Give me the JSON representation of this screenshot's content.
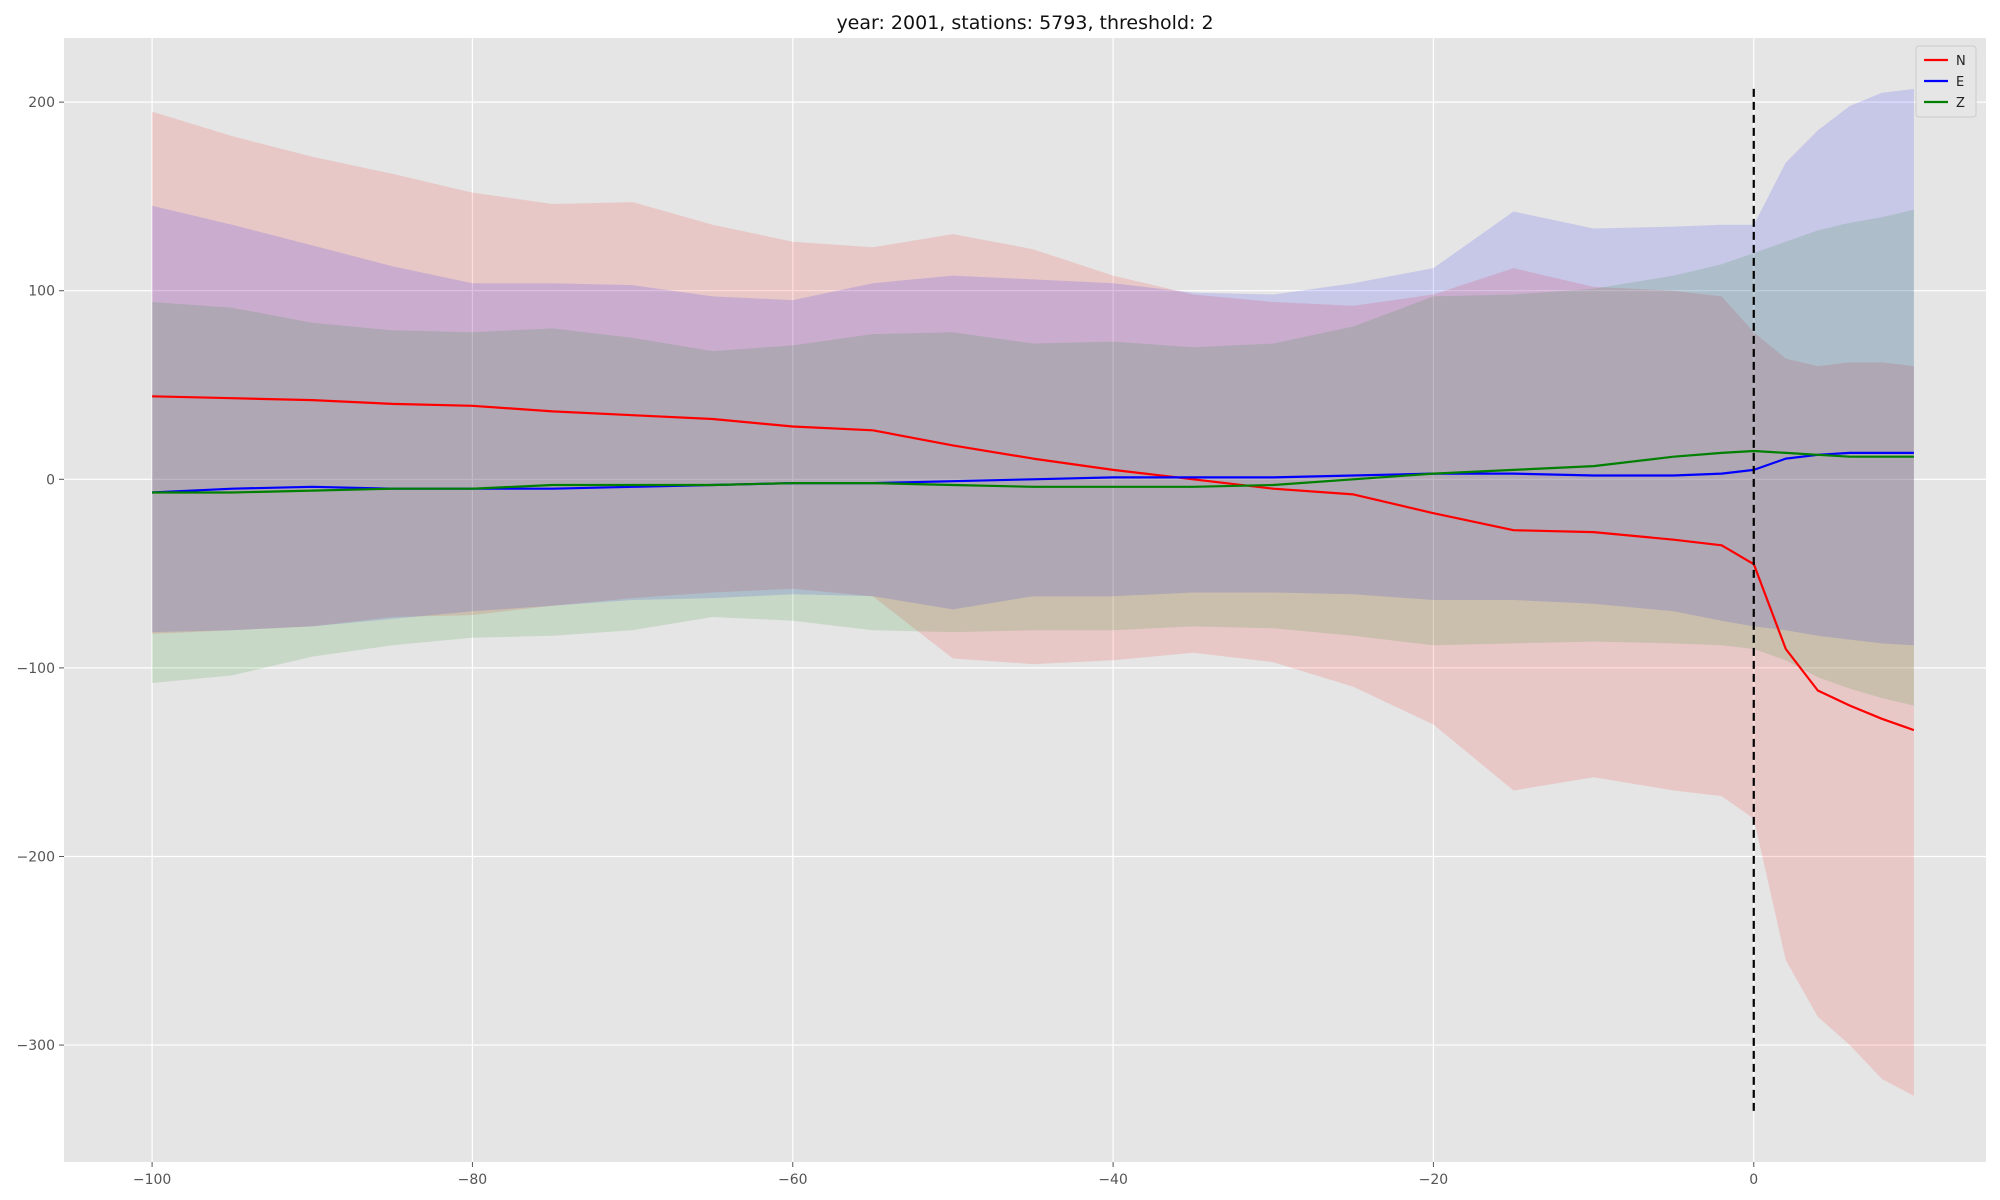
{
  "chart_data": {
    "type": "line",
    "title": "year: 2001, stations: 5793, threshold: 2",
    "xlabel": "",
    "ylabel": "",
    "xlim": [
      -105.5,
      14.5
    ],
    "ylim": [
      -362,
      234
    ],
    "xticks": [
      -100,
      -80,
      -60,
      -40,
      -20,
      0
    ],
    "yticks": [
      -300,
      -200,
      -100,
      0,
      100,
      200
    ],
    "xtick_labels": [
      "−100",
      "−80",
      "−60",
      "−40",
      "−20",
      "0"
    ],
    "ytick_labels": [
      "−300",
      "−200",
      "−100",
      "0",
      "100",
      "200"
    ],
    "grid": true,
    "background": "#e5e5e5",
    "legend": {
      "placement": "top-right"
    },
    "vline": {
      "x": 0,
      "ymin": -335,
      "ymax": 207,
      "style": "dashed",
      "color": "#000000"
    },
    "series": [
      {
        "name": "N",
        "color": "#ff0000",
        "band_color": "#ff0000",
        "x": [
          -100,
          -95,
          -90,
          -85,
          -80,
          -75,
          -70,
          -65,
          -60,
          -55,
          -50,
          -45,
          -40,
          -35,
          -30,
          -25,
          -20,
          -15,
          -10,
          -5,
          -2,
          0,
          2,
          4,
          6,
          8,
          10
        ],
        "mean": [
          44,
          43,
          42,
          40,
          39,
          36,
          34,
          32,
          28,
          26,
          18,
          11,
          5,
          0,
          -5,
          -8,
          -18,
          -27,
          -28,
          -32,
          -35,
          -45,
          -90,
          -112,
          -120,
          -127,
          -133
        ],
        "upper": [
          195,
          182,
          171,
          162,
          152,
          146,
          147,
          135,
          126,
          123,
          130,
          122,
          108,
          98,
          94,
          92,
          98,
          112,
          102,
          100,
          97,
          78,
          64,
          60,
          62,
          62,
          60
        ],
        "lower": [
          -82,
          -80,
          -78,
          -73,
          -72,
          -67,
          -63,
          -60,
          -58,
          -62,
          -95,
          -98,
          -96,
          -92,
          -97,
          -110,
          -130,
          -165,
          -158,
          -165,
          -168,
          -180,
          -255,
          -285,
          -300,
          -318,
          -327
        ]
      },
      {
        "name": "E",
        "color": "#0000ff",
        "band_color": "#0000ff",
        "x": [
          -100,
          -95,
          -90,
          -85,
          -80,
          -75,
          -70,
          -65,
          -60,
          -55,
          -50,
          -45,
          -40,
          -35,
          -30,
          -25,
          -20,
          -15,
          -10,
          -5,
          -2,
          0,
          2,
          4,
          6,
          8,
          10
        ],
        "mean": [
          -7,
          -5,
          -4,
          -5,
          -5,
          -5,
          -4,
          -3,
          -2,
          -2,
          -1,
          0,
          1,
          1,
          1,
          2,
          3,
          3,
          2,
          2,
          3,
          5,
          11,
          13,
          14,
          14,
          14
        ],
        "upper": [
          145,
          135,
          124,
          113,
          104,
          104,
          103,
          97,
          95,
          104,
          108,
          106,
          104,
          99,
          98,
          104,
          112,
          142,
          133,
          134,
          135,
          135,
          168,
          185,
          198,
          205,
          207
        ],
        "lower": [
          -81,
          -80,
          -78,
          -74,
          -70,
          -67,
          -64,
          -63,
          -61,
          -62,
          -69,
          -62,
          -62,
          -60,
          -60,
          -61,
          -64,
          -64,
          -66,
          -70,
          -75,
          -78,
          -80,
          -83,
          -85,
          -87,
          -88
        ]
      },
      {
        "name": "Z",
        "color": "#008000",
        "band_color": "#008000",
        "x": [
          -100,
          -95,
          -90,
          -85,
          -80,
          -75,
          -70,
          -65,
          -60,
          -55,
          -50,
          -45,
          -40,
          -35,
          -30,
          -25,
          -20,
          -15,
          -10,
          -5,
          -2,
          0,
          2,
          4,
          6,
          8,
          10
        ],
        "mean": [
          -7,
          -7,
          -6,
          -5,
          -5,
          -3,
          -3,
          -3,
          -2,
          -2,
          -3,
          -4,
          -4,
          -4,
          -3,
          0,
          3,
          5,
          7,
          12,
          14,
          15,
          14,
          13,
          12,
          12,
          12
        ],
        "upper": [
          94,
          91,
          83,
          79,
          78,
          80,
          75,
          68,
          71,
          77,
          78,
          72,
          73,
          70,
          72,
          81,
          97,
          98,
          101,
          108,
          114,
          120,
          126,
          132,
          136,
          139,
          143
        ],
        "lower": [
          -108,
          -104,
          -94,
          -88,
          -84,
          -83,
          -80,
          -73,
          -75,
          -80,
          -81,
          -80,
          -80,
          -78,
          -79,
          -83,
          -88,
          -87,
          -86,
          -87,
          -88,
          -90,
          -96,
          -105,
          -111,
          -116,
          -120
        ]
      }
    ]
  }
}
